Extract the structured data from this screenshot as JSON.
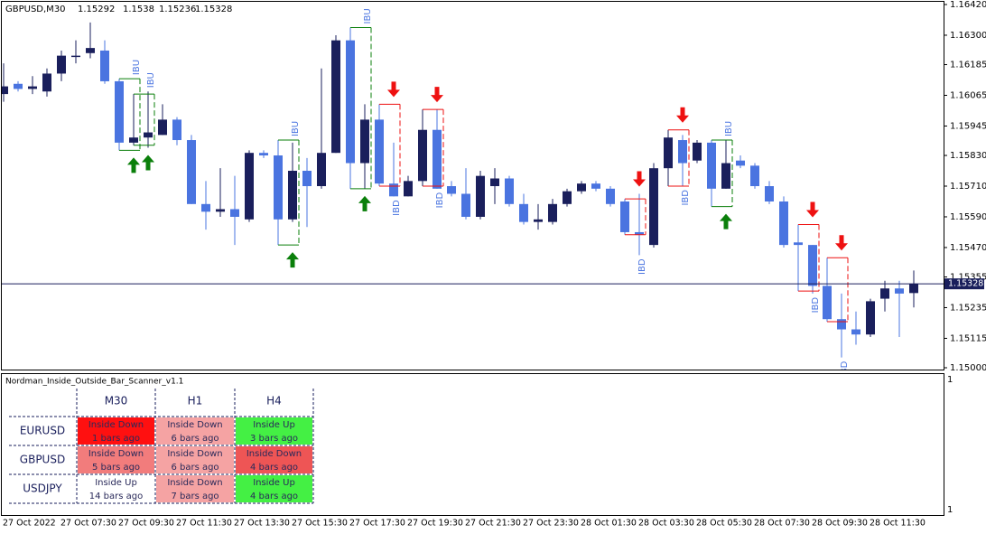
{
  "chart_data": {
    "type": "candlestick",
    "symbol": "GBPUSD,M30",
    "up_color": "#1a1f5c",
    "down_color": "#4a74e0",
    "categories": [
      "27 Oct 2022",
      null,
      null,
      null,
      "27 Oct 07:30",
      null,
      null,
      null,
      "27 Oct 09:30",
      null,
      null,
      null,
      "27 Oct 11:30",
      null,
      null,
      null,
      "27 Oct 13:30",
      null,
      null,
      null,
      "27 Oct 15:30",
      null,
      null,
      null,
      "27 Oct 17:30",
      null,
      null,
      null,
      "27 Oct 19:30",
      null,
      null,
      null,
      "27 Oct 21:30",
      null,
      null,
      null,
      "27 Oct 23:30",
      null,
      null,
      null,
      "28 Oct 01:30",
      null,
      null,
      null,
      "28 Oct 03:30",
      null,
      null,
      null,
      "28 Oct 05:30",
      null,
      null,
      null,
      "28 Oct 07:30",
      null,
      null,
      null,
      "28 Oct 09:30",
      null,
      null,
      null,
      "28 Oct 11:30",
      null,
      null,
      null
    ],
    "open": [
      1.1607,
      1.1611,
      1.1609,
      1.1608,
      1.1615,
      1.1622,
      1.1623,
      1.1624,
      1.1612,
      1.1588,
      1.159,
      1.1591,
      1.1597,
      1.1589,
      1.1564,
      1.1561,
      1.1562,
      1.1558,
      1.1584,
      1.1583,
      1.1558,
      1.1577,
      1.1571,
      1.1584,
      1.1628,
      1.158,
      1.1597,
      1.1572,
      1.1567,
      1.1573,
      1.1593,
      1.1571,
      1.1568,
      1.1559,
      1.1571,
      1.1574,
      1.1564,
      1.1557,
      1.1557,
      1.1564,
      1.1569,
      1.1572,
      1.157,
      1.1565,
      1.1553,
      1.1548,
      1.1578,
      1.1589,
      1.1581,
      1.1588,
      1.157,
      1.1581,
      1.1579,
      1.1571,
      1.1565,
      1.1549,
      1.1548,
      1.1532,
      1.1519,
      1.1515,
      1.1513,
      1.1527,
      1.1531,
      1.15292
    ],
    "high": [
      1.1619,
      1.1612,
      1.1614,
      1.1617,
      1.1624,
      1.1628,
      1.1635,
      1.1628,
      1.1613,
      1.1607,
      1.1608,
      1.1603,
      1.1598,
      1.1591,
      1.1573,
      1.1578,
      1.1575,
      1.1585,
      1.1585,
      1.1589,
      1.1588,
      1.1582,
      1.1617,
      1.163,
      1.1633,
      1.1603,
      1.1603,
      1.1588,
      1.1575,
      1.1601,
      1.1601,
      1.1573,
      1.1578,
      1.1577,
      1.1578,
      1.1575,
      1.1568,
      1.1564,
      1.1566,
      1.157,
      1.1573,
      1.1573,
      1.1571,
      1.1566,
      1.1568,
      1.158,
      1.1593,
      1.1591,
      1.1589,
      1.1589,
      1.1589,
      1.1583,
      1.158,
      1.1573,
      1.1567,
      1.1556,
      1.1548,
      1.1543,
      1.1529,
      1.1522,
      1.1527,
      1.1534,
      1.1534,
      1.1538
    ],
    "low": [
      1.1604,
      1.1608,
      1.1607,
      1.1606,
      1.1612,
      1.1619,
      1.1621,
      1.1611,
      1.1585,
      1.1587,
      1.1586,
      1.1591,
      1.1587,
      1.1564,
      1.1554,
      1.1559,
      1.1548,
      1.1557,
      1.1582,
      1.1548,
      1.1557,
      1.1555,
      1.157,
      1.1584,
      1.157,
      1.157,
      1.1571,
      1.1567,
      1.1567,
      1.1571,
      1.157,
      1.1567,
      1.1558,
      1.1558,
      1.1564,
      1.1563,
      1.1556,
      1.1554,
      1.1556,
      1.1563,
      1.1568,
      1.1569,
      1.1563,
      1.1552,
      1.1544,
      1.1547,
      1.1571,
      1.1571,
      1.158,
      1.1563,
      1.157,
      1.1578,
      1.157,
      1.1564,
      1.1547,
      1.153,
      1.1529,
      1.1518,
      1.1504,
      1.1509,
      1.1512,
      1.1522,
      1.1512,
      1.15236
    ],
    "close": [
      1.161,
      1.1609,
      1.161,
      1.1615,
      1.1622,
      1.1622,
      1.1625,
      1.1612,
      1.1588,
      1.159,
      1.1592,
      1.1597,
      1.1589,
      1.1564,
      1.1561,
      1.1562,
      1.1559,
      1.1584,
      1.1583,
      1.1558,
      1.1577,
      1.1571,
      1.1584,
      1.1628,
      1.158,
      1.1597,
      1.1572,
      1.1567,
      1.1573,
      1.1593,
      1.157,
      1.1568,
      1.1559,
      1.1575,
      1.1574,
      1.1564,
      1.1557,
      1.1558,
      1.1564,
      1.1569,
      1.1572,
      1.157,
      1.1564,
      1.1553,
      1.1552,
      1.1578,
      1.159,
      1.158,
      1.1588,
      1.157,
      1.158,
      1.1579,
      1.1571,
      1.1565,
      1.1548,
      1.1548,
      1.1532,
      1.1519,
      1.1515,
      1.1513,
      1.1526,
      1.1531,
      1.1529,
      1.15328
    ],
    "ylim": [
      1.15,
      1.1642
    ],
    "yticks": [
      {
        "value": 1.15,
        "label": "1.15000"
      },
      {
        "value": 1.15115,
        "label": "1.15115"
      },
      {
        "value": 1.15235,
        "label": "1.15235"
      },
      {
        "value": 1.15355,
        "label": "1.15355"
      },
      {
        "value": 1.1547,
        "label": "1.15470"
      },
      {
        "value": 1.1559,
        "label": "1.15590"
      },
      {
        "value": 1.1571,
        "label": "1.15710"
      },
      {
        "value": 1.1583,
        "label": "1.15830"
      },
      {
        "value": 1.15945,
        "label": "1.15945"
      },
      {
        "value": 1.16065,
        "label": "1.16065"
      },
      {
        "value": 1.16185,
        "label": "1.16185"
      },
      {
        "value": 1.163,
        "label": "1.16300"
      },
      {
        "value": 1.1642,
        "label": "1.16420"
      }
    ],
    "price_line": {
      "value": 1.15328,
      "label": "1.15328",
      "color": "#1a1f5c"
    },
    "signal_colors": {
      "up": "#0a7f0a",
      "down": "#ee1111"
    },
    "annotations": [
      {
        "text": "IBU",
        "bar": 9,
        "arrow": "up"
      },
      {
        "text": "IBU",
        "bar": 10,
        "arrow": "up"
      },
      {
        "text": "IBU",
        "bar": 20,
        "arrow": "up"
      },
      {
        "text": "IBU",
        "bar": 25,
        "arrow": "up"
      },
      {
        "text": "IBD",
        "bar": 27,
        "arrow": "down"
      },
      {
        "text": "IBD",
        "bar": 30,
        "arrow": "down"
      },
      {
        "text": "IBD",
        "bar": 44,
        "arrow": "down"
      },
      {
        "text": "IBD",
        "bar": 47,
        "arrow": "down"
      },
      {
        "text": "IBU",
        "bar": 50,
        "arrow": "up"
      },
      {
        "text": "IBD",
        "bar": 56,
        "arrow": "down"
      },
      {
        "text": "IBD",
        "bar": 58,
        "arrow": "down"
      }
    ]
  },
  "scanner": {
    "title": "Nordman_Inside_Outside_Bar_Scanner_v1.1",
    "axis_labels": [
      1,
      1
    ],
    "columns": [
      "M30",
      "H1",
      "H4"
    ],
    "rows": [
      {
        "symbol": "EURUSD",
        "cells": [
          {
            "signal": "Inside Down",
            "age": "1 bars ago",
            "color": "#ff1010"
          },
          {
            "signal": "Inside Down",
            "age": "6 bars ago",
            "color": "#f5a3a3"
          },
          {
            "signal": "Inside Up",
            "age": "3 bars ago",
            "color": "#44f044"
          }
        ]
      },
      {
        "symbol": "GBPUSD",
        "cells": [
          {
            "signal": "Inside Down",
            "age": "5 bars ago",
            "color": "#f27c7c"
          },
          {
            "signal": "Inside Down",
            "age": "6 bars ago",
            "color": "#f5a3a3"
          },
          {
            "signal": "Inside Down",
            "age": "4 bars ago",
            "color": "#ee5555"
          }
        ]
      },
      {
        "symbol": "USDJPY",
        "cells": [
          {
            "signal": "Inside Up",
            "age": "14 bars ago",
            "color": "#ffffff"
          },
          {
            "signal": "Inside Down",
            "age": "7 bars ago",
            "color": "#f5a3a3"
          },
          {
            "signal": "Inside Up",
            "age": "4 bars ago",
            "color": "#44f044"
          }
        ]
      }
    ]
  }
}
